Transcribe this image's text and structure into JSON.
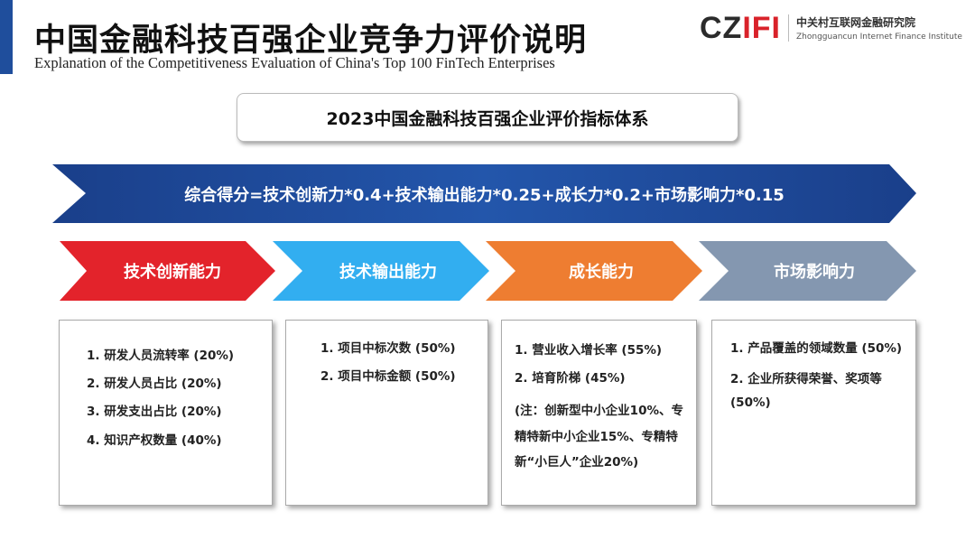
{
  "header": {
    "title": "中国金融科技百强企业竞争力评价说明",
    "subtitle": "Explanation of the Competitiveness Evaluation of China's Top 100 FinTech Enterprises"
  },
  "logo": {
    "mark_dark": "CZ",
    "mark_red": "IFI",
    "name_cn": "中关村互联网金融研究院",
    "name_en": "Zhongguancun Internet Finance Institute"
  },
  "system_title": "2023中国金融科技百强企业评价指标体系",
  "formula": "综合得分=技术创新力*0.4+技术输出能力*0.25+成长力*0.2+市场影响力*0.15",
  "colors": {
    "banner": "#1f4e9c",
    "tech_innovation": "#e3232b",
    "tech_output": "#32aef0",
    "growth": "#ee7d31",
    "market": "#8497b0"
  },
  "categories": [
    {
      "label": "技术创新能力",
      "items": [
        "1. 研发人员流转率 (20%)",
        "2. 研发人员占比 (20%)",
        "3. 研发支出占比 (20%)",
        "4. 知识产权数量 (40%)"
      ]
    },
    {
      "label": "技术输出能力",
      "items": [
        "1. 项目中标次数 (50%)",
        "2. 项目中标金额 (50%)"
      ]
    },
    {
      "label": "成长能力",
      "items": [
        "1. 营业收入增长率 (55%)",
        "2. 培育阶梯 (45%)",
        "(注：创新型中小企业10%、专精特新中小企业15%、专精特新“小巨人”企业20%)"
      ]
    },
    {
      "label": "市场影响力",
      "items": [
        "1. 产品覆盖的领域数量 (50%)",
        "2. 企业所获得荣誉、奖项等 (50%)"
      ]
    }
  ]
}
